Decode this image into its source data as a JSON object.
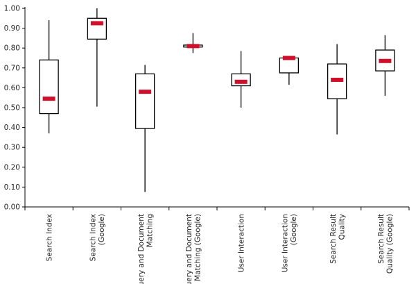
{
  "chart_data": {
    "type": "boxplot",
    "title": "",
    "xlabel": "",
    "ylabel": "",
    "ylim": [
      0,
      1
    ],
    "yticks": [
      "0.00",
      "0.10",
      "0.20",
      "0.30",
      "0.40",
      "0.50",
      "0.60",
      "0.70",
      "0.80",
      "0.90",
      "1.00"
    ],
    "grid": false,
    "categories": [
      {
        "label_lines": [
          "Search Index"
        ],
        "min": 0.37,
        "q1": 0.47,
        "median": 0.545,
        "q3": 0.74,
        "max": 0.94
      },
      {
        "label_lines": [
          "Search Index",
          "(Google)"
        ],
        "min": 0.505,
        "q1": 0.845,
        "median": 0.925,
        "q3": 0.95,
        "max": 1.0
      },
      {
        "label_lines": [
          "Query and Document",
          "Matching"
        ],
        "min": 0.075,
        "q1": 0.395,
        "median": 0.58,
        "q3": 0.67,
        "max": 0.715
      },
      {
        "label_lines": [
          "Query and Document",
          "Matching (Google)"
        ],
        "min": 0.775,
        "q1": 0.805,
        "median": 0.81,
        "q3": 0.815,
        "max": 0.875
      },
      {
        "label_lines": [
          "User Interaction"
        ],
        "min": 0.5,
        "q1": 0.61,
        "median": 0.63,
        "q3": 0.67,
        "max": 0.785
      },
      {
        "label_lines": [
          "User Interaction",
          "(Google)"
        ],
        "min": 0.615,
        "q1": 0.675,
        "median": 0.75,
        "q3": 0.75,
        "max": 0.75
      },
      {
        "label_lines": [
          "Search Result",
          "Quality"
        ],
        "min": 0.365,
        "q1": 0.545,
        "median": 0.64,
        "q3": 0.72,
        "max": 0.82
      },
      {
        "label_lines": [
          "Search Result",
          "Quality (Google)"
        ],
        "min": 0.56,
        "q1": 0.685,
        "median": 0.735,
        "q3": 0.79,
        "max": 0.865
      }
    ],
    "colors": {
      "median": "#d0102a",
      "box": "#000000",
      "axis": "#000000",
      "text": "#222222"
    }
  }
}
